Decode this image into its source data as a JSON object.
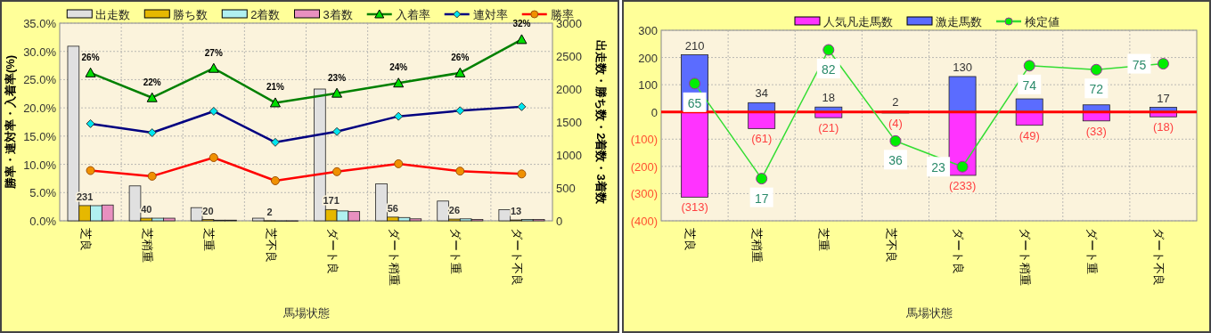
{
  "chart_data": [
    {
      "type": "bar",
      "categories": [
        "芝良",
        "芝稍重",
        "芝重",
        "芝不良",
        "ダート良",
        "ダート稍重",
        "ダート重",
        "ダート不良"
      ],
      "xlabel": "馬場状態",
      "ylabel": "勝率・連対率・入着率(%)",
      "y2label": "出走数・勝ち数・2着数・3着数",
      "ylim": [
        0,
        35
      ],
      "yticks": [
        {
          "value": 0,
          "label": "0.0%"
        },
        {
          "value": 5,
          "label": "5.0%"
        },
        {
          "value": 10,
          "label": "10.0%"
        },
        {
          "value": 15,
          "label": "15.0%"
        },
        {
          "value": 20,
          "label": "20.0%"
        },
        {
          "value": 25,
          "label": "25.0%"
        },
        {
          "value": 30,
          "label": "30.0%"
        },
        {
          "value": 35,
          "label": "35.0%"
        }
      ],
      "y2lim": [
        0,
        3000
      ],
      "y2ticks": [
        0,
        500,
        1000,
        1500,
        2000,
        2500,
        3000
      ],
      "grid": true,
      "legend": "top",
      "series": [
        {
          "name": "出走数",
          "axis": "y2",
          "color": "#e0e0e0",
          "values": [
            2650,
            530,
            200,
            40,
            2000,
            560,
            300,
            170
          ]
        },
        {
          "name": "勝ち数",
          "axis": "y2",
          "color": "#e6b800",
          "values": [
            231,
            40,
            20,
            2,
            171,
            56,
            26,
            13
          ],
          "value_labels": [
            "231",
            "40",
            "20",
            "2",
            "171",
            "56",
            "26",
            "13"
          ]
        },
        {
          "name": "2着数",
          "axis": "y2",
          "color": "#b0f0f0",
          "values": [
            230,
            40,
            10,
            0,
            150,
            50,
            30,
            20
          ]
        },
        {
          "name": "3着数",
          "axis": "y2",
          "color": "#e890c0",
          "values": [
            240,
            40,
            10,
            0,
            140,
            30,
            20,
            20
          ]
        },
        {
          "name": "入着率",
          "type": "line",
          "color": "#008000",
          "marker": "triangle",
          "values": [
            26.2,
            21.8,
            27.0,
            20.9,
            22.6,
            24.4,
            26.2,
            32.1
          ],
          "value_labels": [
            "26%",
            "22%",
            "27%",
            "21%",
            "23%",
            "24%",
            "26%",
            "32%"
          ]
        },
        {
          "name": "連対率",
          "type": "line",
          "color": "#000080",
          "marker": "diamond",
          "values": [
            17.2,
            15.6,
            19.4,
            13.9,
            15.8,
            18.5,
            19.5,
            20.2
          ]
        },
        {
          "name": "勝率",
          "type": "line",
          "color": "#ff0000",
          "marker": "circle",
          "values": [
            8.9,
            7.9,
            11.2,
            7.1,
            8.7,
            10.1,
            8.8,
            8.3
          ]
        }
      ]
    },
    {
      "type": "bar",
      "stacked": true,
      "categories": [
        "芝良",
        "芝稍重",
        "芝重",
        "芝不良",
        "ダート良",
        "ダート稍重",
        "ダート重",
        "ダート不良"
      ],
      "xlabel": "馬場状態",
      "ylim": [
        -400,
        300
      ],
      "yticks": [
        {
          "value": -400,
          "label": "(400)"
        },
        {
          "value": -300,
          "label": "(300)"
        },
        {
          "value": -200,
          "label": "(200)"
        },
        {
          "value": -100,
          "label": "(100)"
        },
        0,
        100,
        200,
        300
      ],
      "y2lim": [
        -4.3,
        91.9
      ],
      "grid": true,
      "legend": "top",
      "ref_lines": [
        {
          "axis": "y",
          "value": 0,
          "color": "#ff0000"
        }
      ],
      "series": [
        {
          "name": "人気凡走馬数",
          "color": "#ff33ff",
          "values": [
            -313,
            -61,
            -21,
            -4,
            -233,
            -49,
            -33,
            -18
          ],
          "value_labels": [
            "(313)",
            "(61)",
            "(21)",
            "(4)",
            "(233)",
            "(49)",
            "(33)",
            "(18)"
          ]
        },
        {
          "name": "激走馬数",
          "color": "#5b6cff",
          "values": [
            210,
            34,
            18,
            2,
            130,
            48,
            26,
            17
          ],
          "value_labels": [
            "210",
            "34",
            "18",
            "2",
            "130",
            null,
            null,
            "17"
          ]
        },
        {
          "name": "検定値",
          "type": "line",
          "axis": "y2",
          "color": "#33dd33",
          "marker": "circle",
          "values": [
            65,
            17,
            82,
            36,
            23,
            74,
            72,
            75
          ],
          "value_labels": [
            "65",
            "17",
            "82",
            "36",
            "23",
            "74",
            "72",
            "75"
          ]
        }
      ]
    }
  ]
}
